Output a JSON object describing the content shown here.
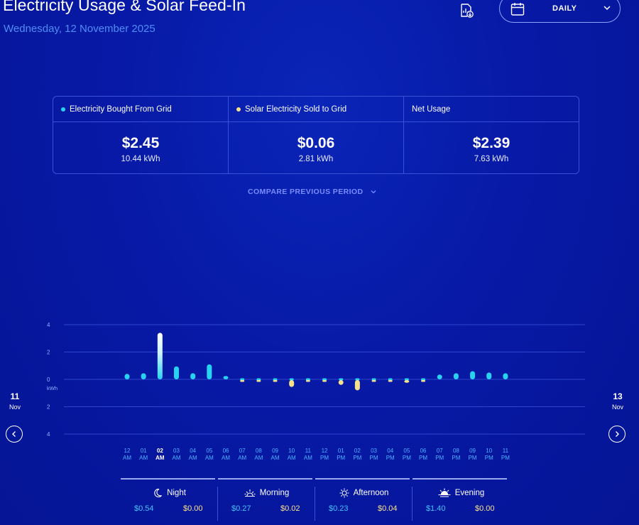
{
  "header": {
    "title": "Electricity Usage & Solar Feed-In",
    "date": "Wednesday, 12 November 2025",
    "period": "DAILY"
  },
  "summary": [
    {
      "label": "Electricity Bought From Grid",
      "amount": "$2.45",
      "kwh": "10.44 kWh",
      "dot": "#28d3f0"
    },
    {
      "label": "Solar Electricity Sold to Grid",
      "amount": "$0.06",
      "kwh": "2.81 kWh",
      "dot": "#f7e08a"
    },
    {
      "label": "Net Usage",
      "amount": "$2.39",
      "kwh": "7.63 kWh",
      "dot": ""
    }
  ],
  "compare_label": "COMPARE PREVIOUS PERIOD",
  "nav": {
    "prev_day": "11",
    "prev_month": "Nov",
    "next_day": "13",
    "next_month": "Nov"
  },
  "colors": {
    "grid": "#28d3f0",
    "solar": "#f7e08a",
    "gridline": "#2e46cf"
  },
  "chart_data": {
    "type": "bar",
    "y_unit": "kWh",
    "y_ticks": [
      "4",
      "2",
      "0",
      "2",
      "4"
    ],
    "ylim": [
      -4,
      4
    ],
    "selected_index": 2,
    "categories": [
      {
        "hour": "12",
        "ampm": "AM"
      },
      {
        "hour": "01",
        "ampm": "AM"
      },
      {
        "hour": "02",
        "ampm": "AM"
      },
      {
        "hour": "03",
        "ampm": "AM"
      },
      {
        "hour": "04",
        "ampm": "AM"
      },
      {
        "hour": "05",
        "ampm": "AM"
      },
      {
        "hour": "06",
        "ampm": "AM"
      },
      {
        "hour": "07",
        "ampm": "AM"
      },
      {
        "hour": "08",
        "ampm": "AM"
      },
      {
        "hour": "09",
        "ampm": "AM"
      },
      {
        "hour": "10",
        "ampm": "AM"
      },
      {
        "hour": "11",
        "ampm": "AM"
      },
      {
        "hour": "12",
        "ampm": "PM"
      },
      {
        "hour": "01",
        "ampm": "PM"
      },
      {
        "hour": "02",
        "ampm": "PM"
      },
      {
        "hour": "03",
        "ampm": "PM"
      },
      {
        "hour": "04",
        "ampm": "PM"
      },
      {
        "hour": "05",
        "ampm": "PM"
      },
      {
        "hour": "06",
        "ampm": "PM"
      },
      {
        "hour": "07",
        "ampm": "PM"
      },
      {
        "hour": "08",
        "ampm": "PM"
      },
      {
        "hour": "09",
        "ampm": "PM"
      },
      {
        "hour": "10",
        "ampm": "PM"
      },
      {
        "hour": "11",
        "ampm": "PM"
      }
    ],
    "series": [
      {
        "name": "Electricity Bought From Grid",
        "values": [
          0.4,
          0.45,
          3.4,
          0.95,
          0.45,
          1.1,
          0.25,
          0.08,
          0.08,
          0.12,
          0.1,
          0.1,
          0.15,
          0.08,
          0.1,
          0.08,
          0.15,
          0.15,
          0.15,
          0.35,
          0.45,
          0.6,
          0.5,
          0.45
        ]
      },
      {
        "name": "Solar Electricity Sold to Grid",
        "values": [
          0,
          0,
          0,
          0,
          0,
          0,
          0,
          0.05,
          0.1,
          0.05,
          0.5,
          0.05,
          0.12,
          0.35,
          0.75,
          0.05,
          0.1,
          0.2,
          0.15,
          0,
          0,
          0,
          0,
          0
        ]
      }
    ]
  },
  "segments": [
    {
      "name": "Night",
      "icon": "moon-icon",
      "grid": "$0.54",
      "solar": "$0.00"
    },
    {
      "name": "Morning",
      "icon": "sunrise-icon",
      "grid": "$0.27",
      "solar": "$0.02"
    },
    {
      "name": "Afternoon",
      "icon": "sun-icon",
      "grid": "$0.23",
      "solar": "$0.04"
    },
    {
      "name": "Evening",
      "icon": "sunset-icon",
      "grid": "$1.40",
      "solar": "$0.00"
    }
  ]
}
